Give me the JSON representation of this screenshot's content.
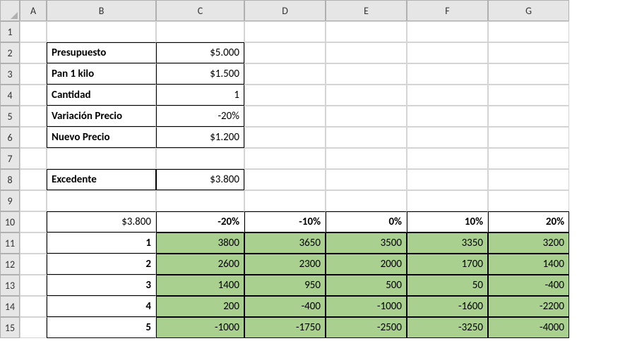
{
  "colHeaders": [
    "A",
    "B",
    "C",
    "D",
    "E",
    "F",
    "G"
  ],
  "rowHeaders": [
    "1",
    "2",
    "3",
    "4",
    "5",
    "6",
    "7",
    "8",
    "9",
    "10",
    "11",
    "12",
    "13",
    "14",
    "15"
  ],
  "params": {
    "presupuesto_label": "Presupuesto",
    "presupuesto_value": "$5.000",
    "pan_label": "Pan 1 kilo",
    "pan_value": "$1.500",
    "cantidad_label": "Cantidad",
    "cantidad_value": "1",
    "variacion_label": "Variación Precio",
    "variacion_value": "-20%",
    "nuevo_label": "Nuevo Precio",
    "nuevo_value": "$1.200",
    "excedente_label": "Excedente",
    "excedente_value": "$3.800"
  },
  "datatable": {
    "corner": "$3.800",
    "col_pcts": [
      "-20%",
      "-10%",
      "0%",
      "10%",
      "20%"
    ],
    "row_qtys": [
      "1",
      "2",
      "3",
      "4",
      "5"
    ],
    "values": [
      [
        "3800",
        "3650",
        "3500",
        "3350",
        "3200"
      ],
      [
        "2600",
        "2300",
        "2000",
        "1700",
        "1400"
      ],
      [
        "1400",
        "950",
        "500",
        "50",
        "-400"
      ],
      [
        "200",
        "-400",
        "-1000",
        "-1600",
        "-2200"
      ],
      [
        "-1000",
        "-1750",
        "-2500",
        "-3250",
        "-4000"
      ]
    ],
    "green_bg": "#a9d08e"
  },
  "colors": {
    "header_bg": "#e6e6e6",
    "header_border": "#b0b0b0",
    "cell_border": "#d4d4d4",
    "thick_border": "#000000",
    "text": "#000000",
    "bg": "#ffffff"
  },
  "font": {
    "family": "Calibri",
    "size_pt": 11
  }
}
